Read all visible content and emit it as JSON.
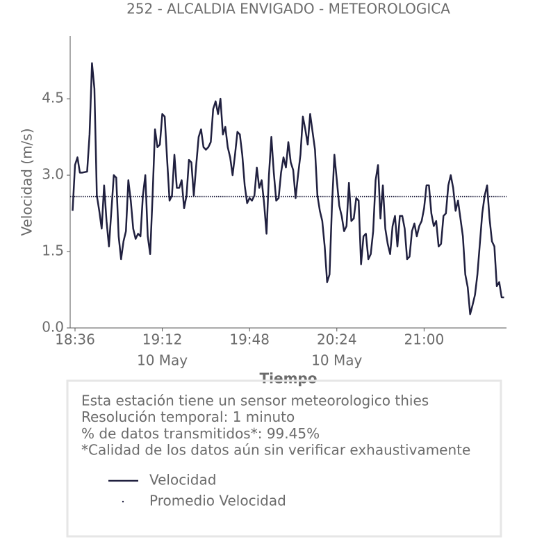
{
  "chart_data": {
    "type": "line",
    "title": "252 - ALCALDIA ENVIGADO - METEOROLOGICA",
    "xlabel": "Tiempo",
    "ylabel": "Velocidad (m/s)",
    "x": [
      "18:35",
      "18:36",
      "18:37",
      "18:38",
      "18:39",
      "18:40",
      "18:41",
      "18:42",
      "18:43",
      "18:44",
      "18:45",
      "18:46",
      "18:47",
      "18:48",
      "18:49",
      "18:50",
      "18:51",
      "18:52",
      "18:53",
      "18:54",
      "18:55",
      "18:56",
      "18:57",
      "18:58",
      "18:59",
      "19:00",
      "19:01",
      "19:02",
      "19:03",
      "19:04",
      "19:05",
      "19:06",
      "19:07",
      "19:08",
      "19:09",
      "19:10",
      "19:11",
      "19:12",
      "19:13",
      "19:14",
      "19:15",
      "19:16",
      "19:17",
      "19:18",
      "19:19",
      "19:20",
      "19:21",
      "19:22",
      "19:23",
      "19:24",
      "19:25",
      "19:26",
      "19:27",
      "19:28",
      "19:29",
      "19:30",
      "19:31",
      "19:32",
      "19:33",
      "19:34",
      "19:35",
      "19:36",
      "19:37",
      "19:38",
      "19:39",
      "19:40",
      "19:41",
      "19:42",
      "19:43",
      "19:44",
      "19:45",
      "19:46",
      "19:47",
      "19:48",
      "19:49",
      "19:50",
      "19:51",
      "19:52",
      "19:53",
      "19:54",
      "19:55",
      "19:56",
      "19:57",
      "19:58",
      "19:59",
      "20:00",
      "20:01",
      "20:02",
      "20:03",
      "20:04",
      "20:05",
      "20:06",
      "20:07",
      "20:08",
      "20:09",
      "20:10",
      "20:11",
      "20:12",
      "20:13",
      "20:14",
      "20:15",
      "20:16",
      "20:17",
      "20:18",
      "20:19",
      "20:20",
      "20:21",
      "20:22",
      "20:23",
      "20:24",
      "20:25",
      "20:26",
      "20:27",
      "20:28",
      "20:29",
      "20:30",
      "20:31",
      "20:32",
      "20:33",
      "20:34",
      "20:35",
      "20:36",
      "20:37",
      "20:38",
      "20:39",
      "20:40",
      "20:41",
      "20:42",
      "20:43",
      "20:44",
      "20:45",
      "20:46",
      "20:47",
      "20:48",
      "20:49",
      "20:50",
      "20:51",
      "20:52",
      "20:53",
      "20:54",
      "20:55",
      "20:56",
      "20:57",
      "20:58",
      "20:59",
      "21:00",
      "21:01",
      "21:02",
      "21:03",
      "21:04",
      "21:05",
      "21:06",
      "21:07",
      "21:08",
      "21:09",
      "21:10",
      "21:11",
      "21:12",
      "21:13",
      "21:14",
      "21:15",
      "21:16",
      "21:17",
      "21:18",
      "21:19",
      "21:20",
      "21:21",
      "21:22",
      "21:23",
      "21:24",
      "21:25",
      "21:26",
      "21:27",
      "21:28",
      "21:29",
      "21:30",
      "21:31",
      "21:32",
      "21:33"
    ],
    "series": [
      {
        "name": "Velocidad",
        "color": "#20203f",
        "style": "solid",
        "values": [
          2.3,
          3.2,
          3.35,
          3.05,
          3.05,
          3.06,
          3.07,
          3.8,
          5.2,
          4.7,
          2.6,
          2.3,
          1.95,
          2.8,
          2.1,
          1.6,
          2.3,
          3.0,
          2.95,
          1.8,
          1.35,
          1.7,
          1.9,
          2.9,
          2.5,
          1.95,
          1.75,
          1.85,
          1.8,
          2.6,
          3.0,
          1.8,
          1.45,
          2.6,
          3.9,
          3.55,
          3.6,
          4.2,
          4.15,
          3.3,
          2.5,
          2.6,
          3.4,
          2.75,
          2.75,
          2.9,
          2.35,
          2.6,
          3.3,
          3.25,
          2.6,
          3.2,
          3.75,
          3.9,
          3.55,
          3.5,
          3.55,
          3.65,
          4.3,
          4.45,
          4.2,
          4.5,
          3.8,
          3.95,
          3.55,
          3.35,
          3.0,
          3.4,
          3.85,
          3.8,
          3.4,
          2.8,
          2.45,
          2.55,
          2.5,
          2.6,
          3.15,
          2.75,
          2.9,
          2.45,
          1.85,
          3.0,
          3.75,
          3.05,
          2.5,
          2.55,
          3.05,
          3.35,
          3.15,
          3.65,
          3.25,
          3.1,
          2.55,
          3.0,
          3.4,
          4.15,
          3.9,
          3.6,
          4.2,
          3.85,
          3.5,
          2.6,
          2.3,
          2.1,
          1.6,
          0.9,
          1.05,
          2.4,
          3.4,
          2.9,
          2.4,
          2.2,
          1.9,
          2.0,
          2.85,
          2.1,
          2.15,
          2.55,
          2.5,
          1.25,
          1.8,
          1.85,
          1.35,
          1.45,
          1.9,
          2.9,
          3.2,
          2.15,
          2.8,
          1.95,
          1.65,
          1.45,
          2.0,
          2.2,
          1.6,
          2.2,
          2.2,
          1.95,
          1.35,
          1.4,
          1.9,
          2.05,
          1.8,
          2.0,
          2.1,
          2.35,
          2.8,
          2.8,
          2.25,
          2.0,
          2.1,
          1.6,
          1.65,
          2.2,
          2.25,
          2.8,
          3.0,
          2.75,
          2.3,
          2.5,
          2.15,
          1.8,
          1.05,
          0.8,
          0.27,
          0.45,
          0.65,
          1.05,
          1.65,
          2.25,
          2.6,
          2.8,
          2.15,
          1.7,
          1.6,
          0.82,
          0.9,
          0.6,
          0.6
        ]
      },
      {
        "name": "Promedio Velocidad",
        "color": "#20203f",
        "style": "dotted",
        "value": 2.58
      }
    ],
    "xlim": [
      "18:34",
      "21:34"
    ],
    "xticks": [
      "18:36",
      "19:12",
      "19:48",
      "20:24",
      "21:00"
    ],
    "xtick_sublabels": [
      null,
      "10 May",
      null,
      "10 May",
      null
    ],
    "ylim": [
      0,
      5.73
    ],
    "yticks": [
      {
        "value": 0,
        "label": "0.0"
      },
      1.5,
      {
        "value": 3,
        "label": "3.0"
      },
      4.5
    ],
    "grid": false,
    "annotations": [
      "Esta estación tiene un sensor meteorologico thies",
      "Resolución temporal: 1 minuto",
      "% de datos transmitidos*: 99.45%",
      "*Calidad de los datos aún sin verificar exhaustivamente"
    ]
  }
}
